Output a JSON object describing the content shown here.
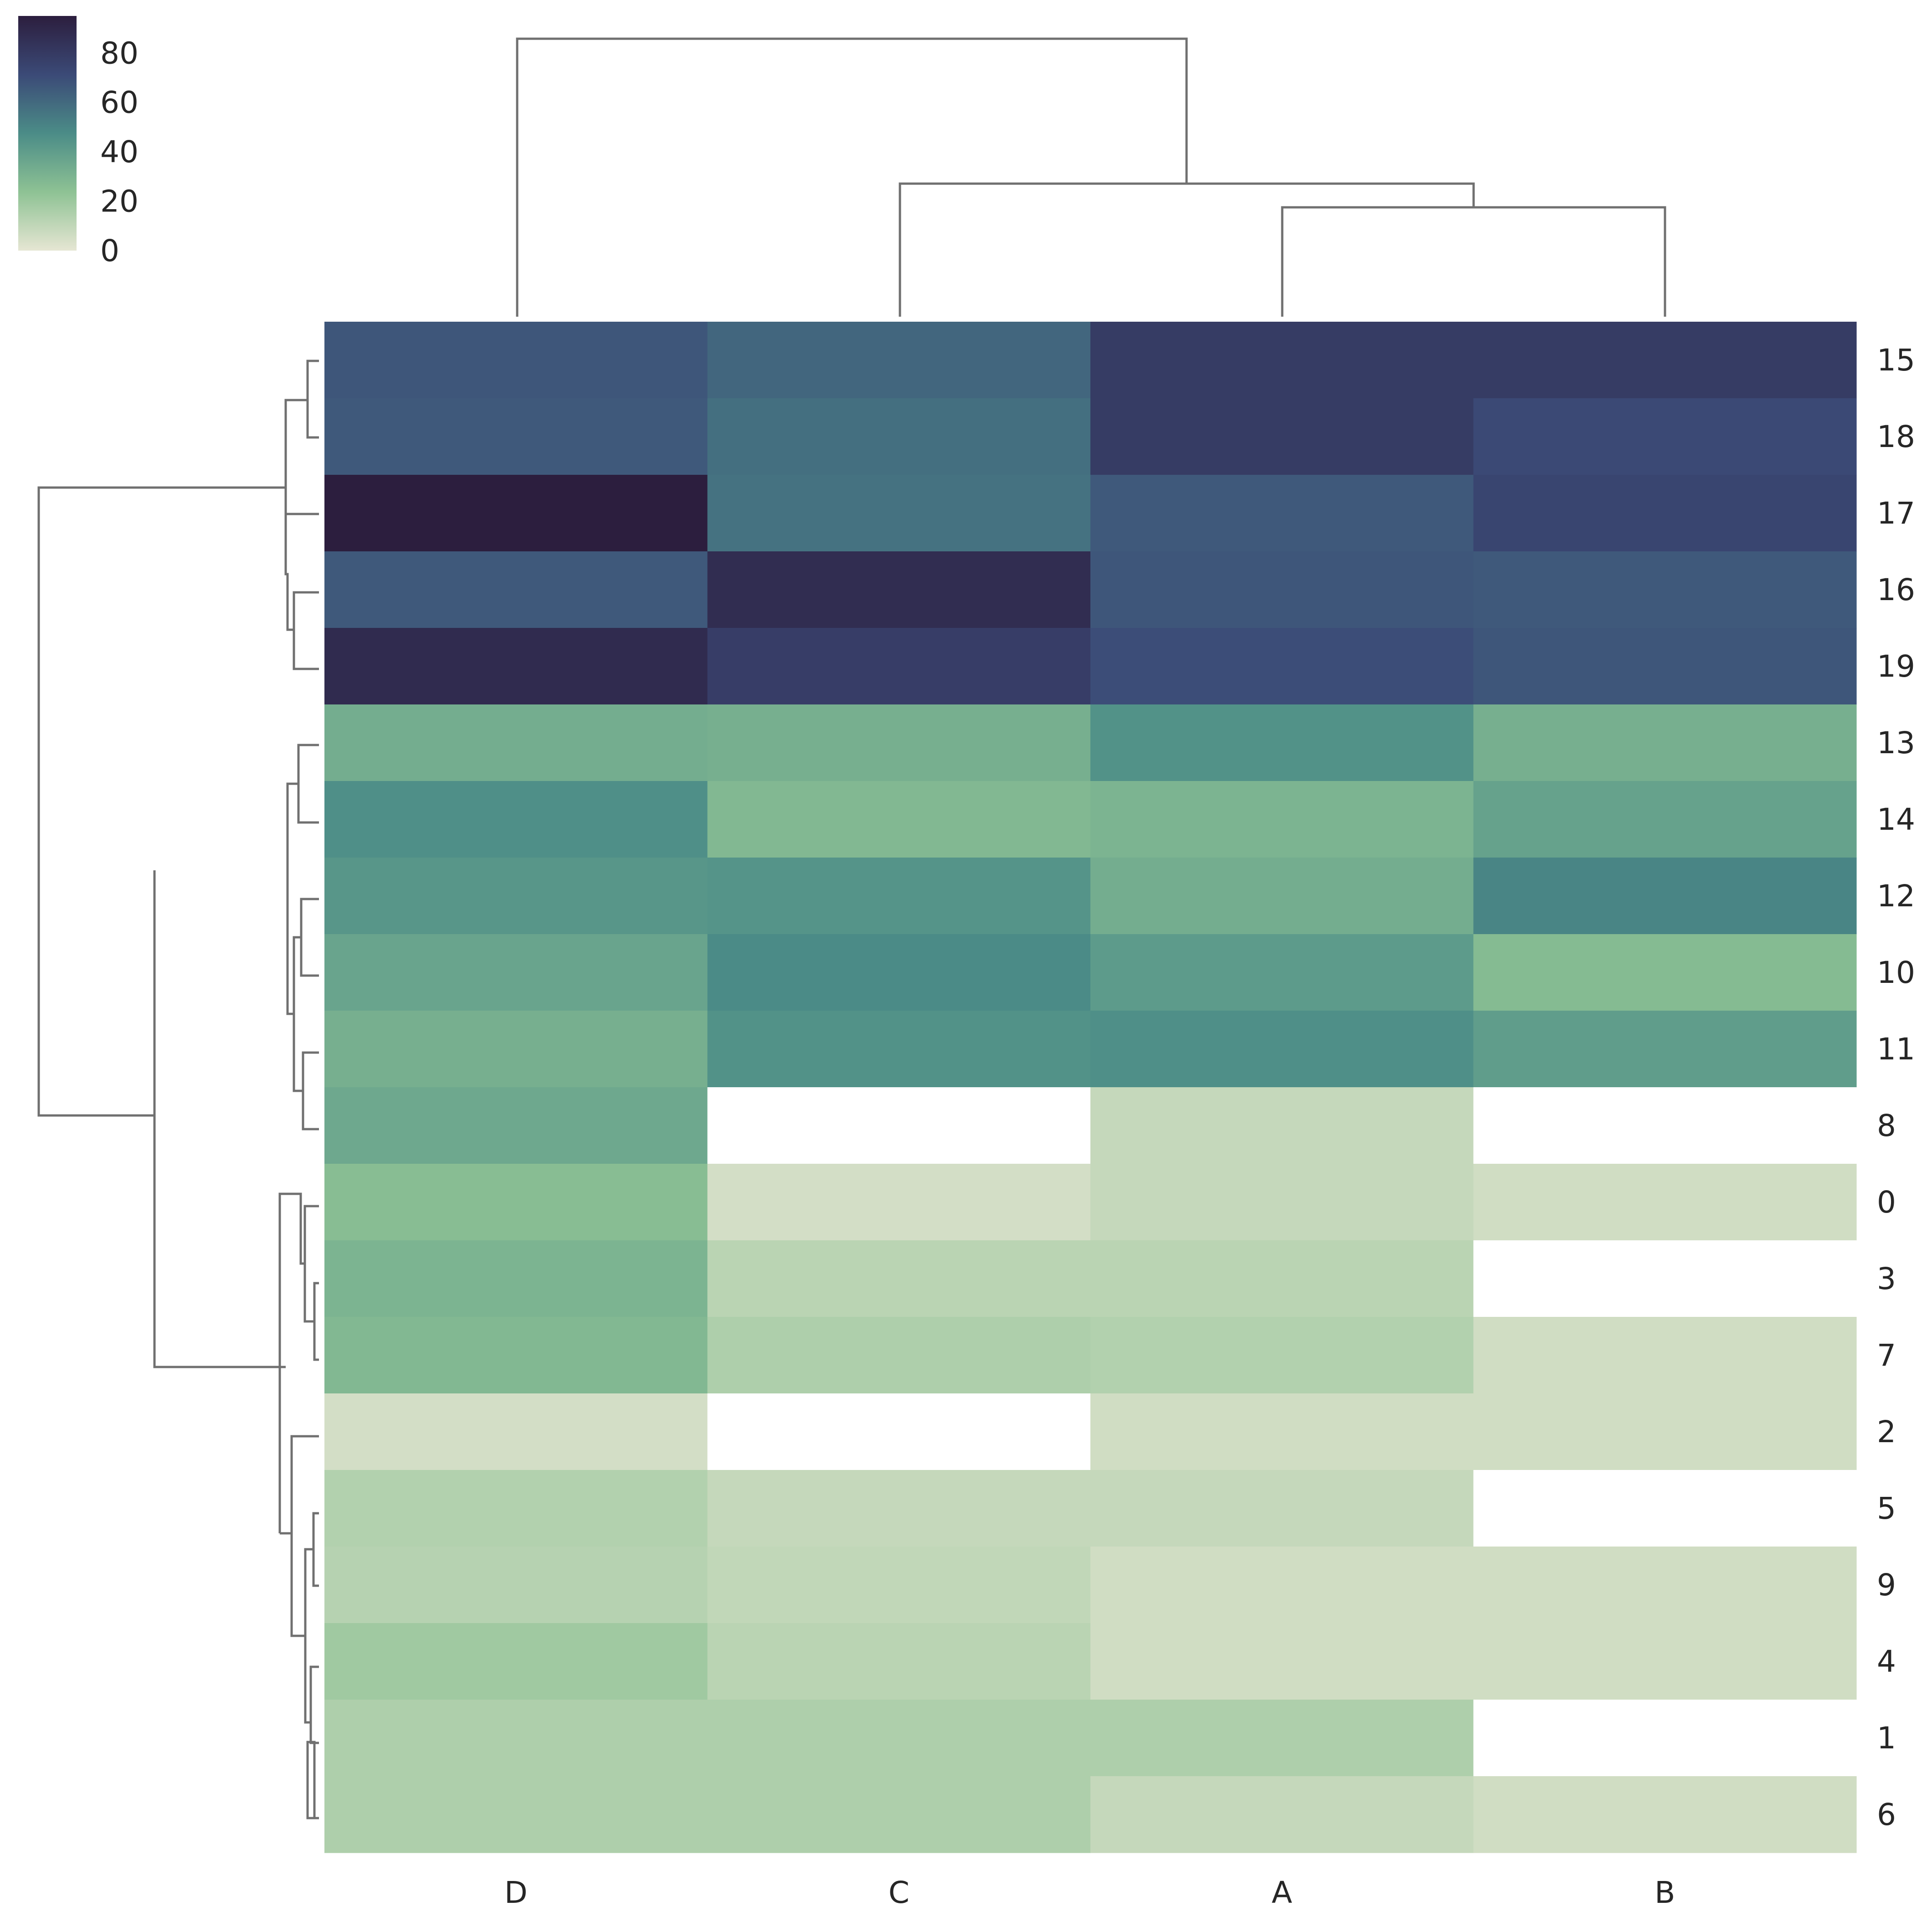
{
  "chart_data": {
    "type": "heatmap",
    "title": "",
    "xlabel": "",
    "ylabel": "",
    "columns": [
      "D",
      "C",
      "A",
      "B"
    ],
    "rows": [
      "15",
      "18",
      "17",
      "16",
      "19",
      "13",
      "14",
      "12",
      "10",
      "11",
      "8",
      "0",
      "3",
      "7",
      "2",
      "5",
      "9",
      "4",
      "1",
      "6"
    ],
    "values": [
      [
        67,
        61,
        79,
        79
      ],
      [
        66,
        58,
        79,
        72
      ],
      [
        95,
        57,
        66,
        74
      ],
      [
        66,
        87,
        67,
        66
      ],
      [
        88,
        78,
        70,
        67
      ],
      [
        33,
        32,
        45,
        32
      ],
      [
        46,
        28,
        30,
        38
      ],
      [
        43,
        44,
        33,
        50
      ],
      [
        37,
        48,
        41,
        27
      ],
      [
        32,
        45,
        46,
        40
      ],
      [
        35,
        null,
        9,
        null
      ],
      [
        26,
        5,
        9,
        6
      ],
      [
        30,
        12,
        12,
        null
      ],
      [
        28,
        15,
        14,
        6
      ],
      [
        5,
        null,
        6,
        6
      ],
      [
        14,
        9,
        9,
        null
      ],
      [
        13,
        10,
        6,
        6
      ],
      [
        19,
        12,
        6,
        6
      ],
      [
        15,
        15,
        15,
        null
      ],
      [
        15,
        15,
        9,
        6
      ]
    ],
    "colorbar": {
      "ticks": [
        0,
        20,
        40,
        60,
        80
      ],
      "range": [
        0,
        95
      ],
      "colormap": [
        "#e6e6d3",
        "#8ec294",
        "#4b8c87",
        "#3b4a77",
        "#2c1e3e"
      ],
      "placement": "top-left"
    },
    "missing_color": "#ffffff",
    "row_dendrogram": "left",
    "column_dendrogram": "top",
    "grid": false
  }
}
